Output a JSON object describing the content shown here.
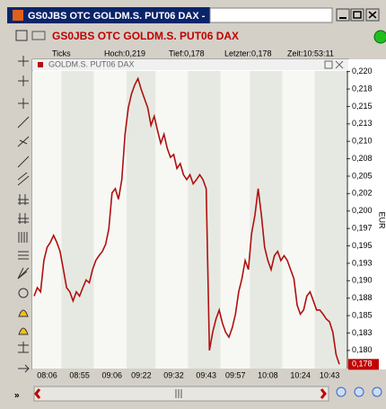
{
  "window": {
    "title": "GS0JBS OTC GOLDM.S. PUT06 DAX -"
  },
  "toolbar": {
    "title": "GS0JBS OTC GOLDM.S. PUT06 DAX"
  },
  "info": {
    "mode": "Ticks",
    "high": "Hoch:0,219",
    "low": "Tief:0,178",
    "last": "Letzter:0,178",
    "time": "Zeit:10:53:11"
  },
  "chart_data": {
    "type": "line",
    "y_label": "EUR",
    "categories": [
      null,
      null,
      null,
      null,
      "08:06",
      null,
      null,
      null,
      null,
      null,
      null,
      null,
      null,
      null,
      "08:55",
      null,
      null,
      null,
      null,
      null,
      null,
      null,
      null,
      null,
      "09:06",
      null,
      null,
      null,
      null,
      null,
      null,
      null,
      null,
      "09:22",
      null,
      null,
      null,
      null,
      null,
      null,
      null,
      null,
      null,
      "09:32",
      null,
      null,
      null,
      null,
      null,
      null,
      null,
      null,
      null,
      "09:43",
      null,
      null,
      null,
      null,
      null,
      null,
      null,
      null,
      "09:57",
      null,
      null,
      null,
      null,
      null,
      null,
      null,
      null,
      null,
      "10:08",
      null,
      null,
      null,
      null,
      null,
      null,
      null,
      null,
      null,
      "10:24",
      null,
      null,
      null,
      null,
      null,
      null,
      null,
      null,
      "10:43",
      null,
      null,
      null
    ],
    "series": [
      {
        "name": "GOLDM.S. PUT06 DAX",
        "color": "#b01010",
        "values": [
          0.1878,
          0.189,
          0.1884,
          0.1929,
          0.1948,
          0.1955,
          0.1965,
          0.1955,
          0.1942,
          0.1916,
          0.189,
          0.1884,
          0.1871,
          0.1884,
          0.1878,
          0.189,
          0.1901,
          0.1897,
          0.1916,
          0.1929,
          0.1936,
          0.1942,
          0.1952,
          0.1974,
          0.2026,
          0.2032,
          0.2017,
          0.2045,
          0.211,
          0.2148,
          0.2168,
          0.2181,
          0.219,
          0.2174,
          0.2161,
          0.2148,
          0.2123,
          0.2136,
          0.2116,
          0.2097,
          0.211,
          0.209,
          0.2077,
          0.2081,
          0.2061,
          0.2068,
          0.2052,
          0.2045,
          0.2052,
          0.2039,
          0.2045,
          0.2052,
          0.2045,
          0.2032,
          0.18,
          0.1826,
          0.1845,
          0.1858,
          0.1839,
          0.1826,
          0.1819,
          0.1832,
          0.1852,
          0.1884,
          0.1903,
          0.1929,
          0.1916,
          0.1968,
          0.1994,
          0.2032,
          0.1994,
          0.1948,
          0.1929,
          0.1916,
          0.1936,
          0.1942,
          0.1929,
          0.1936,
          0.1929,
          0.1916,
          0.1903,
          0.1865,
          0.1852,
          0.1858,
          0.1878,
          0.1884,
          0.1871,
          0.1858,
          0.1858,
          0.1852,
          0.1845,
          0.1841,
          0.1826,
          0.1794,
          0.178
        ],
        "value_labels": [
          null,
          null,
          null,
          null,
          null,
          null,
          null,
          null,
          null,
          null,
          null,
          null,
          null,
          null,
          null,
          null,
          null,
          null,
          null,
          null,
          null,
          null,
          null,
          null,
          null,
          null,
          null,
          null,
          null,
          null,
          null,
          null,
          null,
          null,
          null,
          null,
          null,
          null,
          null,
          null,
          null,
          null,
          null,
          null,
          null,
          null,
          null,
          null,
          null,
          null,
          null,
          null,
          null,
          null,
          null,
          null,
          null,
          null,
          null,
          null,
          null,
          null,
          null,
          null,
          null,
          null,
          null,
          null,
          null,
          null,
          null,
          null,
          null,
          null,
          null,
          null,
          null,
          null,
          null,
          null,
          null,
          null,
          null,
          null,
          null,
          null,
          null,
          null,
          null,
          null,
          null,
          null,
          null,
          null,
          "0,178"
        ]
      }
    ],
    "ylim": [
      0.1774,
      0.2206
    ],
    "yticks": [
      {
        "value": 0.22,
        "label": "0,220"
      },
      {
        "value": 0.2175,
        "label": "0,218"
      },
      {
        "value": 0.215,
        "label": "0,215"
      },
      {
        "value": 0.2125,
        "label": "0,213"
      },
      {
        "value": 0.21,
        "label": "0,210"
      },
      {
        "value": 0.2075,
        "label": "0,208"
      },
      {
        "value": 0.205,
        "label": "0,205"
      },
      {
        "value": 0.2025,
        "label": "0,202"
      },
      {
        "value": 0.2,
        "label": "0,200"
      },
      {
        "value": 0.1975,
        "label": "0,197"
      },
      {
        "value": 0.195,
        "label": "0,195"
      },
      {
        "value": 0.1925,
        "label": "0,193"
      },
      {
        "value": 0.19,
        "label": "0,190"
      },
      {
        "value": 0.1875,
        "label": "0,188"
      },
      {
        "value": 0.185,
        "label": "0,185"
      },
      {
        "value": 0.1825,
        "label": "0,183"
      },
      {
        "value": 0.18,
        "label": "0,180"
      }
    ]
  }
}
